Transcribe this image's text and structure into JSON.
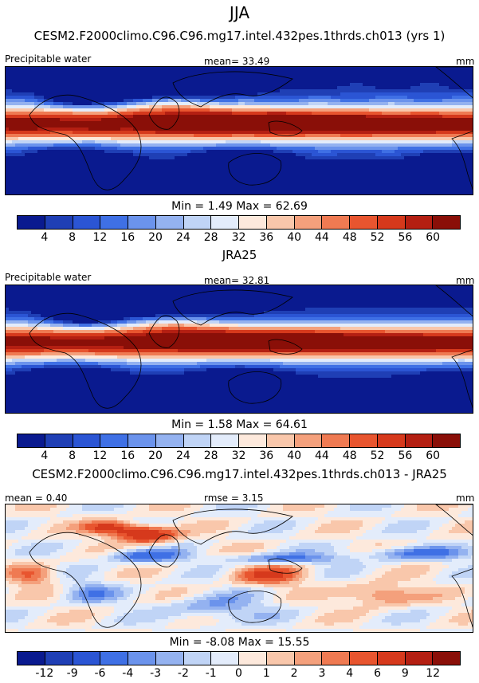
{
  "main_title": "JJA",
  "colors": {
    "abs_palette": [
      "#0a1a8f",
      "#1f3fb5",
      "#2b55d4",
      "#3f70e5",
      "#6b93ec",
      "#94b2f0",
      "#c0d4f6",
      "#e3ecfb",
      "#fde9dc",
      "#f9c7ab",
      "#f4a07c",
      "#ef7a52",
      "#e8552f",
      "#d6391c",
      "#b41f12",
      "#8a0f08"
    ],
    "diff_palette": [
      "#0a1a8f",
      "#1f3fb5",
      "#2b55d4",
      "#3f70e5",
      "#6b93ec",
      "#94b2f0",
      "#c0d4f6",
      "#e3ecfb",
      "#fde9dc",
      "#f9c7ab",
      "#f4a07c",
      "#ef7a52",
      "#e8552f",
      "#d6391c",
      "#b41f12",
      "#8a0f08"
    ]
  },
  "chart_data": [
    {
      "type": "heatmap",
      "title": "CESM2.F2000climo.C96.C96.mg17.intel.432pes.1thrds.ch013 (yrs 1)",
      "left_label": "Precipitable water",
      "stat_label": "mean=",
      "stat_value": "33.49",
      "units": "mm",
      "min_text": "Min =   1.49 Max =  62.69",
      "min": 1.49,
      "max": 62.69,
      "mean": 33.49,
      "colorbar_ticks": [
        "4",
        "8",
        "12",
        "16",
        "20",
        "24",
        "28",
        "32",
        "36",
        "40",
        "44",
        "48",
        "52",
        "56",
        "60"
      ],
      "colorbar_levels": [
        4,
        8,
        12,
        16,
        20,
        24,
        28,
        32,
        36,
        40,
        44,
        48,
        52,
        56,
        60
      ]
    },
    {
      "type": "heatmap",
      "title": "JRA25",
      "left_label": "Precipitable water",
      "stat_label": "mean=",
      "stat_value": "32.81",
      "units": "mm",
      "min_text": "Min =   1.58 Max =  64.61",
      "min": 1.58,
      "max": 64.61,
      "mean": 32.81,
      "colorbar_ticks": [
        "4",
        "8",
        "12",
        "16",
        "20",
        "24",
        "28",
        "32",
        "36",
        "40",
        "44",
        "48",
        "52",
        "56",
        "60"
      ],
      "colorbar_levels": [
        4,
        8,
        12,
        16,
        20,
        24,
        28,
        32,
        36,
        40,
        44,
        48,
        52,
        56,
        60
      ]
    },
    {
      "type": "heatmap",
      "title": "CESM2.F2000climo.C96.C96.mg17.intel.432pes.1thrds.ch013 - JRA25",
      "left_label": "mean =   0.40",
      "stat_label": "rmse =",
      "stat_value": "3.15",
      "units": "mm",
      "min_text": "Min =  -8.08 Max =  15.55",
      "min": -8.08,
      "max": 15.55,
      "mean": 0.4,
      "rmse": 3.15,
      "colorbar_ticks": [
        "-12",
        "-9",
        "-6",
        "-4",
        "-3",
        "-2",
        "-1",
        "0",
        "1",
        "2",
        "3",
        "4",
        "6",
        "9",
        "12"
      ],
      "colorbar_levels": [
        -12,
        -9,
        -6,
        -4,
        -3,
        -2,
        -1,
        0,
        1,
        2,
        3,
        4,
        6,
        9,
        12
      ]
    }
  ]
}
